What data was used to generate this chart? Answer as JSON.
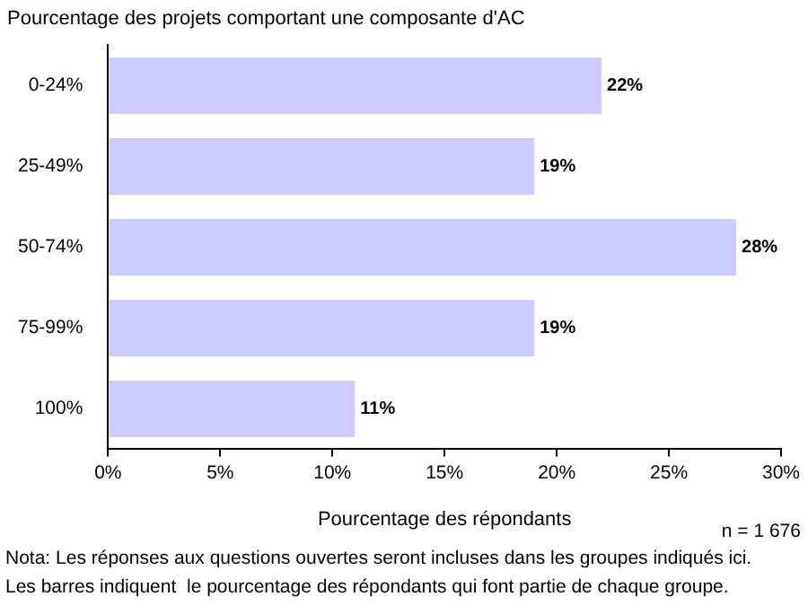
{
  "chart_data": {
    "type": "bar",
    "orientation": "horizontal",
    "title": "Pourcentage des projets comportant une composante d'AC",
    "xlabel": "Pourcentage des répondants",
    "categories": [
      "0-24%",
      "25-49%",
      "50-74%",
      "75-99%",
      "100%"
    ],
    "values": [
      22,
      19,
      28,
      19,
      11
    ],
    "value_labels": [
      "22%",
      "19%",
      "28%",
      "19%",
      "11%"
    ],
    "color": "#ccccff",
    "xlim": [
      0,
      30
    ],
    "xticks": [
      {
        "value": 0,
        "label": "0%"
      },
      {
        "value": 5,
        "label": "5%"
      },
      {
        "value": 10,
        "label": "10%"
      },
      {
        "value": 15,
        "label": "15%"
      },
      {
        "value": 20,
        "label": "20%"
      },
      {
        "value": 25,
        "label": "25%"
      },
      {
        "value": 30,
        "label": "30%"
      }
    ],
    "grid": false,
    "legend": false,
    "annotations": [
      "n = 1 676",
      "Nota: Les réponses aux questions ouvertes seront incluses dans les groupes indiqués ici.",
      "Les barres indiquent  le pourcentage des répondants qui font partie de chaque groupe."
    ]
  }
}
